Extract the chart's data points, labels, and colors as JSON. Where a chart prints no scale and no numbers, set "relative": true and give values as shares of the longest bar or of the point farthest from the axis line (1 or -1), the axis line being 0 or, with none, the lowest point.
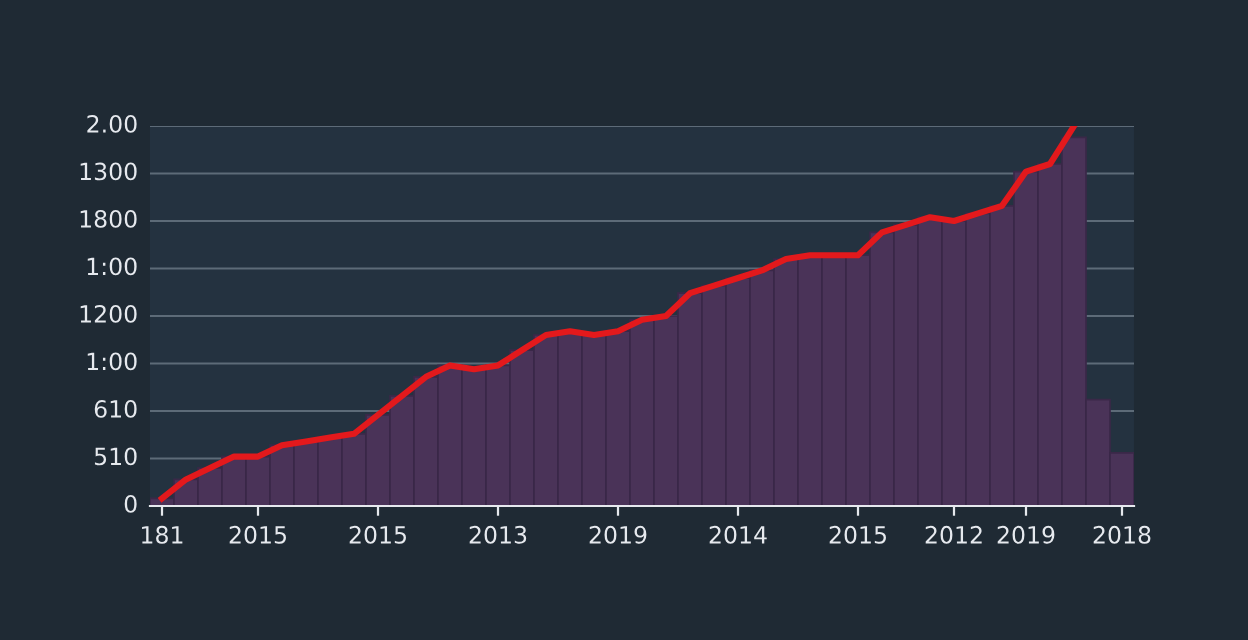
{
  "chart_data": {
    "type": "bar",
    "relative": true,
    "categories": [
      "181",
      null,
      null,
      null,
      "2015",
      null,
      null,
      null,
      null,
      "2015",
      null,
      null,
      null,
      null,
      "2013",
      null,
      null,
      null,
      null,
      "2019",
      null,
      null,
      null,
      null,
      "2014",
      null,
      null,
      null,
      null,
      "2015",
      null,
      null,
      null,
      "2012",
      null,
      null,
      "2019",
      null,
      null,
      null,
      "2018"
    ],
    "series": [
      {
        "color": "#4a3358",
        "values": [
          0.02,
          0.07,
          0.1,
          0.13,
          0.13,
          0.16,
          0.17,
          0.18,
          0.19,
          0.24,
          0.29,
          0.34,
          0.37,
          0.36,
          0.37,
          0.41,
          0.45,
          0.46,
          0.45,
          0.46,
          0.49,
          0.5,
          0.56,
          0.58,
          0.6,
          0.62,
          0.65,
          0.66,
          0.66,
          0.66,
          0.72,
          0.74,
          0.76,
          0.75,
          0.77,
          0.79,
          0.88,
          0.9,
          0.97,
          0.28,
          0.14
        ]
      },
      {
        "type": "line",
        "color": "#e3191c",
        "values": [
          0.02,
          0.07,
          0.1,
          0.13,
          0.13,
          0.16,
          0.17,
          0.18,
          0.19,
          0.24,
          0.29,
          0.34,
          0.37,
          0.36,
          0.37,
          0.41,
          0.45,
          0.46,
          0.45,
          0.46,
          0.49,
          0.5,
          0.56,
          0.58,
          0.6,
          0.62,
          0.65,
          0.66,
          0.66,
          0.66,
          0.72,
          0.74,
          0.76,
          0.75,
          0.77,
          0.79,
          0.88,
          0.9,
          1,
          null,
          null
        ]
      }
    ],
    "annotations": [
      "0",
      "510",
      "610",
      "1:00",
      "1200",
      "1:00",
      "1800",
      "1300",
      "2.00"
    ],
    "grid": "y",
    "line_style": "solid",
    "marker": "none"
  }
}
